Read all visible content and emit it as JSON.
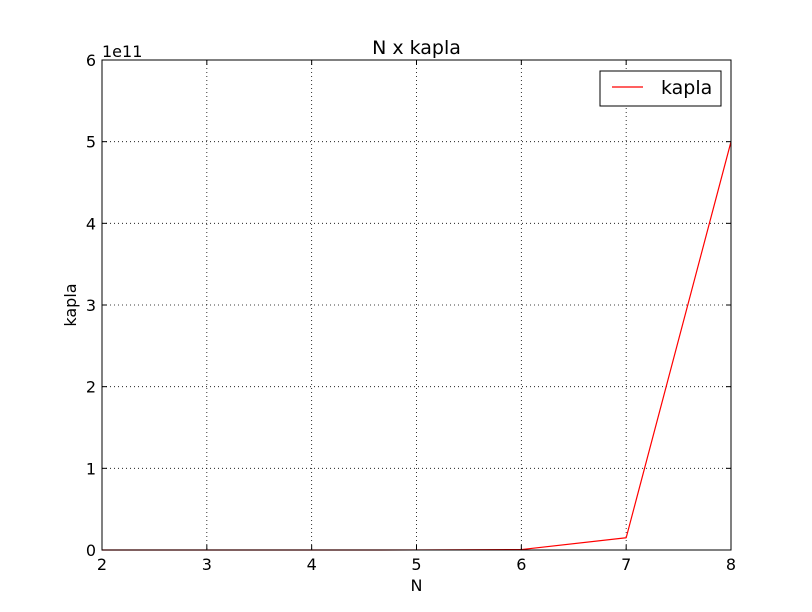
{
  "chart_data": {
    "type": "line",
    "title": "N x kapla",
    "xlabel": "N",
    "ylabel": "kapla",
    "y_offset_label": "1e11",
    "xlim": [
      2,
      8
    ],
    "ylim": [
      0,
      6
    ],
    "x_ticks": [
      "2",
      "3",
      "4",
      "5",
      "6",
      "7",
      "8"
    ],
    "y_ticks": [
      "0",
      "1",
      "2",
      "3",
      "4",
      "5",
      "6"
    ],
    "grid": true,
    "legend": "top-right",
    "series": [
      {
        "name": "kapla",
        "color": "#ff0000",
        "x": [
          2,
          3,
          4,
          5,
          6,
          7,
          8
        ],
        "y": [
          0.0,
          0.0,
          0.0,
          0.0005,
          0.005,
          0.15,
          5.0
        ]
      }
    ]
  }
}
